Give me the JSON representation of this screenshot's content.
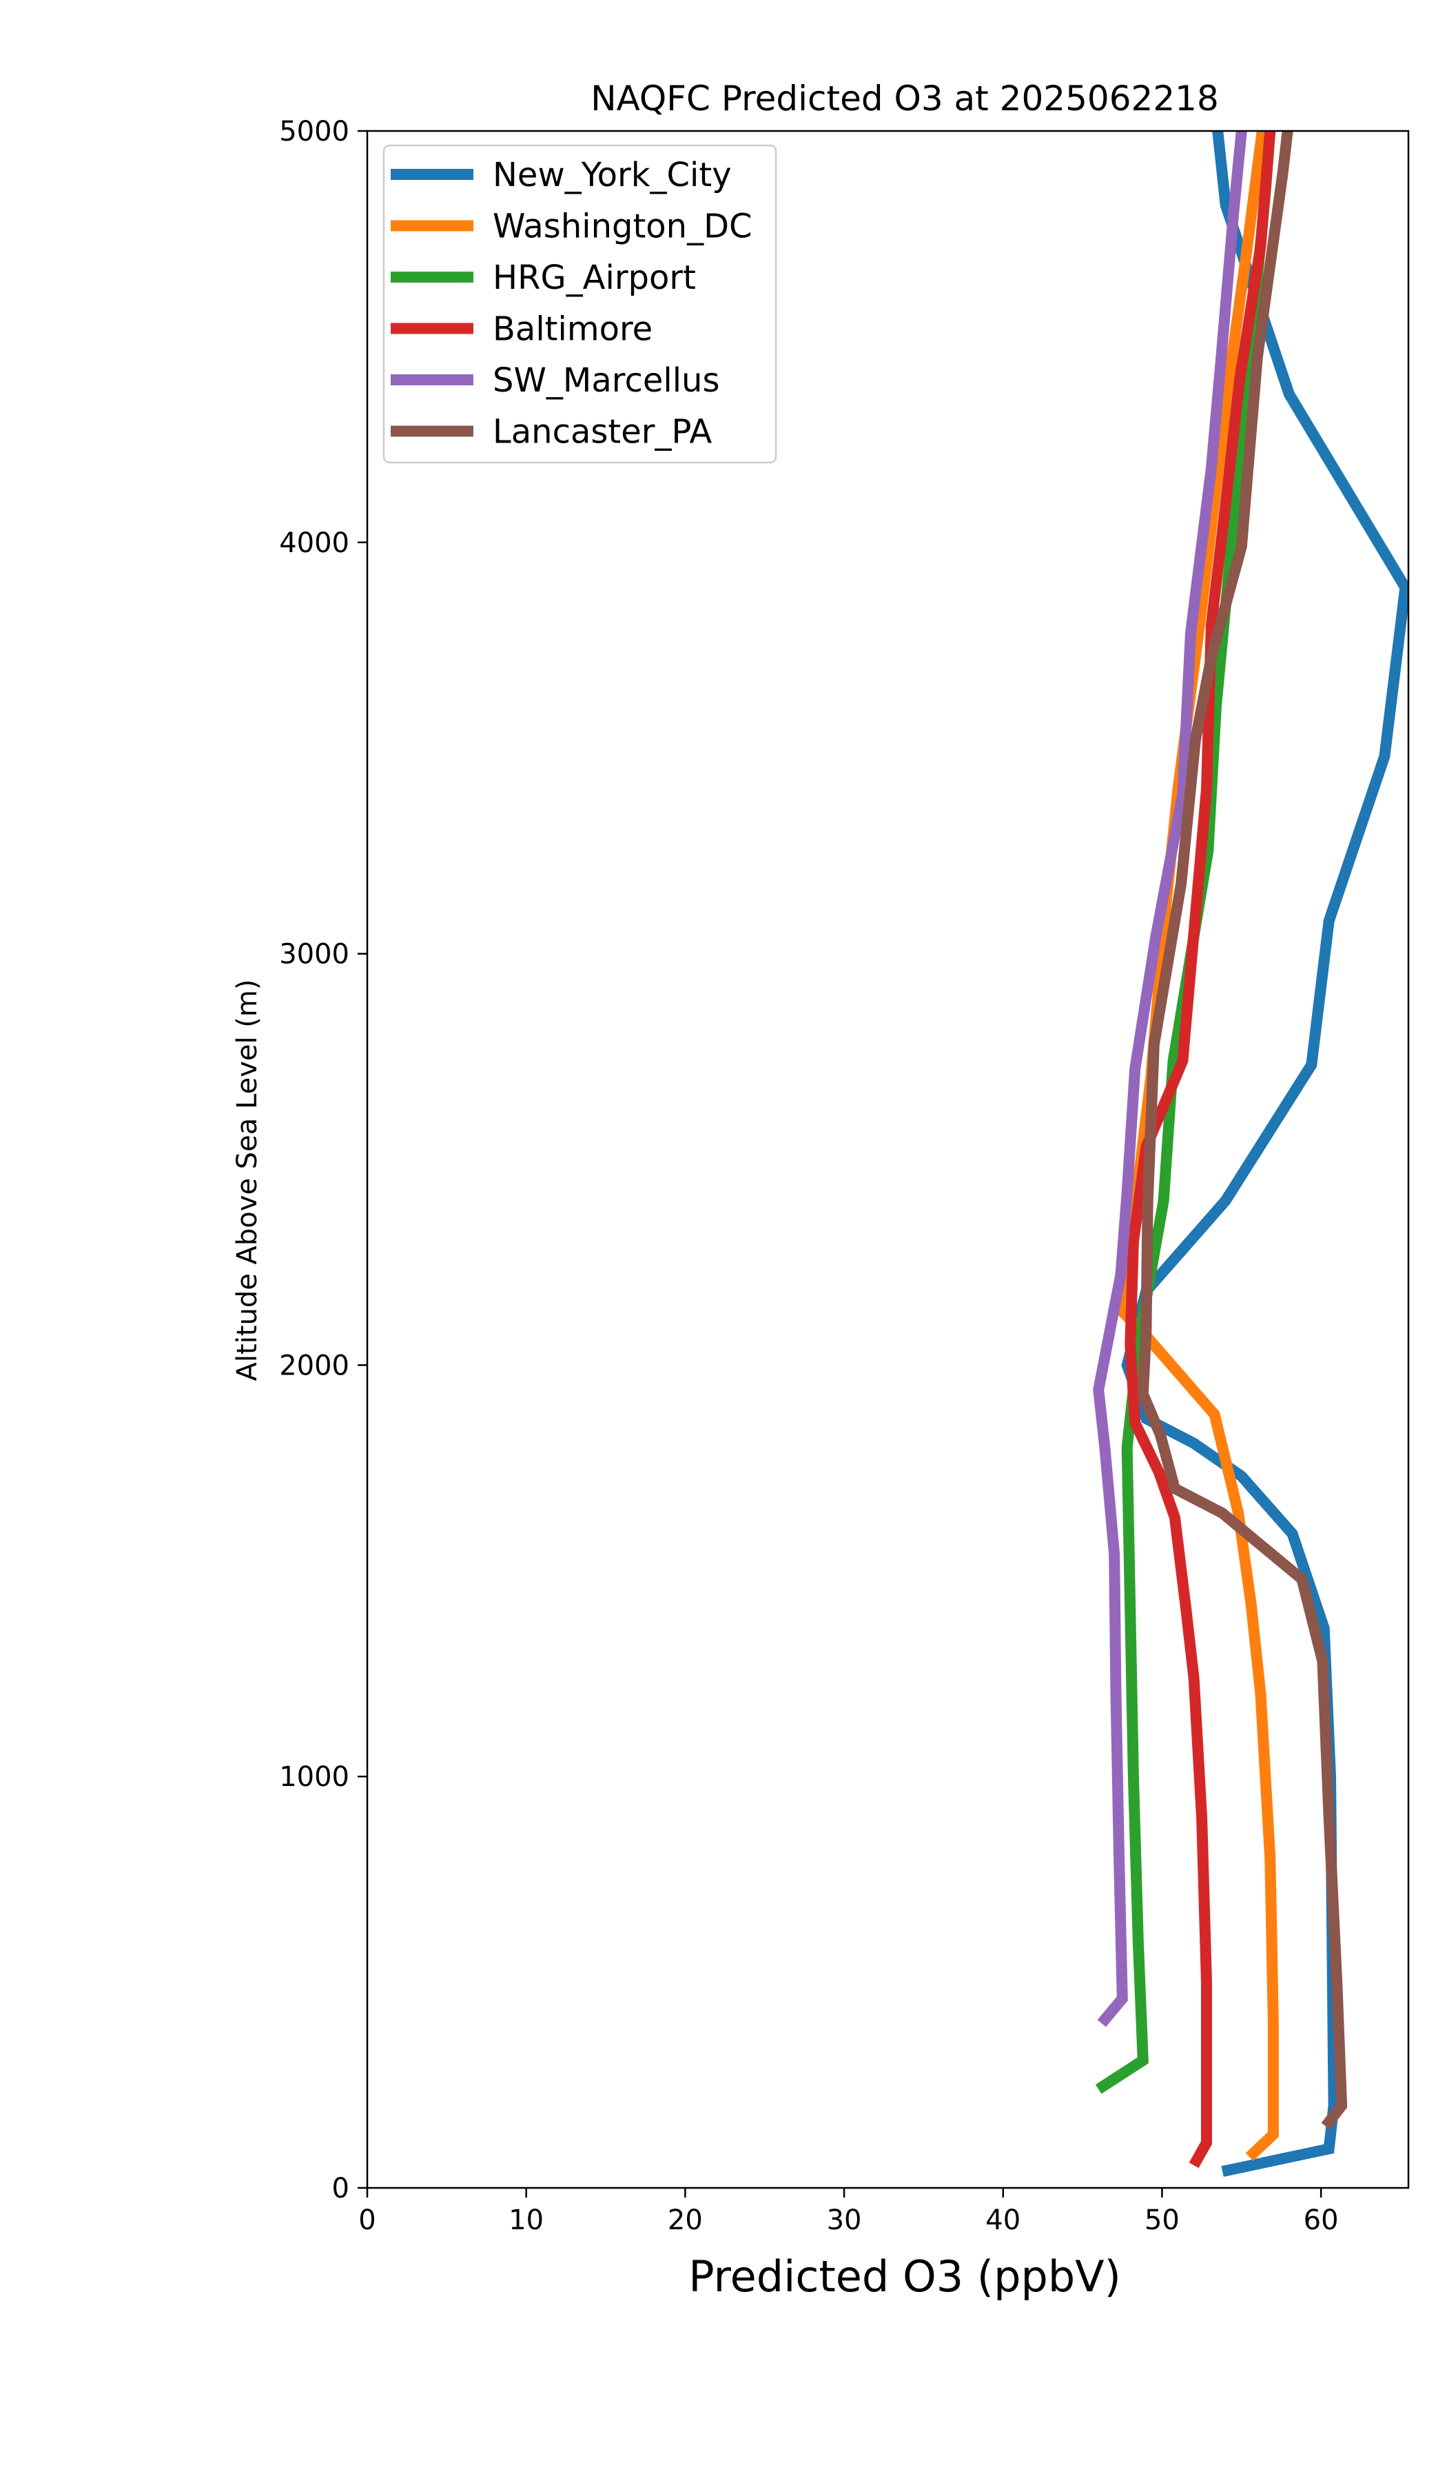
{
  "chart_data": {
    "type": "line",
    "title": "NAQFC Predicted O3 at 2025062218",
    "xlabel": "Predicted O3 (ppbV)",
    "ylabel": "Altitude Above Sea Level (m)",
    "xlim": [
      0,
      65.5
    ],
    "ylim": [
      0,
      5000
    ],
    "xticks": [
      "0",
      "10",
      "20",
      "30",
      "40",
      "50",
      "60"
    ],
    "yticks": [
      "0",
      "1000",
      "2000",
      "3000",
      "4000",
      "5000"
    ],
    "grid": false,
    "legend_position": "top-left",
    "series": [
      {
        "name": "New_York_City",
        "color": "#1f77b4",
        "points": [
          [
            53.8,
            40
          ],
          [
            60.5,
            95
          ],
          [
            60.8,
            200
          ],
          [
            60.7,
            600
          ],
          [
            60.6,
            1000
          ],
          [
            60.2,
            1360
          ],
          [
            58.2,
            1590
          ],
          [
            55.0,
            1730
          ],
          [
            52.0,
            1810
          ],
          [
            49.0,
            1870
          ],
          [
            47.8,
            2000
          ],
          [
            49.0,
            2180
          ],
          [
            54.0,
            2400
          ],
          [
            59.4,
            2730
          ],
          [
            60.5,
            3080
          ],
          [
            64.0,
            3480
          ],
          [
            65.3,
            3890
          ],
          [
            58.0,
            4360
          ],
          [
            54.0,
            4820
          ],
          [
            53.5,
            5000
          ]
        ]
      },
      {
        "name": "Washington_DC",
        "color": "#ff7f0e",
        "points": [
          [
            55.5,
            75
          ],
          [
            57.0,
            130
          ],
          [
            57.0,
            400
          ],
          [
            56.8,
            800
          ],
          [
            56.2,
            1200
          ],
          [
            55.6,
            1420
          ],
          [
            54.8,
            1640
          ],
          [
            53.3,
            1880
          ],
          [
            48.8,
            2080
          ],
          [
            47.5,
            2130
          ],
          [
            48.2,
            2350
          ],
          [
            49.3,
            2700
          ],
          [
            50.2,
            3100
          ],
          [
            51.0,
            3400
          ],
          [
            52.3,
            3780
          ],
          [
            53.3,
            4100
          ],
          [
            54.3,
            4420
          ],
          [
            55.3,
            4700
          ],
          [
            56.3,
            5000
          ]
        ]
      },
      {
        "name": "HRG_Airport",
        "color": "#2ca02c",
        "points": [
          [
            46.0,
            240
          ],
          [
            48.8,
            310
          ],
          [
            48.5,
            600
          ],
          [
            48.2,
            1000
          ],
          [
            48.0,
            1400
          ],
          [
            47.8,
            1800
          ],
          [
            48.5,
            2050
          ],
          [
            50.1,
            2400
          ],
          [
            50.7,
            2740
          ],
          [
            52.9,
            3250
          ],
          [
            53.4,
            3600
          ],
          [
            54.5,
            4050
          ],
          [
            55.4,
            4400
          ],
          [
            56.5,
            4850
          ],
          [
            56.8,
            5000
          ]
        ]
      },
      {
        "name": "Baltimore",
        "color": "#d62728",
        "points": [
          [
            52.0,
            55
          ],
          [
            52.8,
            110
          ],
          [
            52.8,
            500
          ],
          [
            52.5,
            900
          ],
          [
            52.0,
            1240
          ],
          [
            51.5,
            1410
          ],
          [
            50.8,
            1630
          ],
          [
            49.8,
            1740
          ],
          [
            48.3,
            1860
          ],
          [
            48.0,
            2050
          ],
          [
            48.2,
            2300
          ],
          [
            49.0,
            2530
          ],
          [
            51.3,
            2740
          ],
          [
            52.0,
            3050
          ],
          [
            52.8,
            3400
          ],
          [
            53.1,
            3800
          ],
          [
            53.9,
            4060
          ],
          [
            54.9,
            4400
          ],
          [
            56.2,
            4720
          ],
          [
            56.8,
            5000
          ]
        ]
      },
      {
        "name": "SW_Marcellus",
        "color": "#9467bd",
        "points": [
          [
            46.2,
            400
          ],
          [
            47.5,
            460
          ],
          [
            47.3,
            800
          ],
          [
            47.1,
            1200
          ],
          [
            47.0,
            1540
          ],
          [
            46.4,
            1800
          ],
          [
            46.0,
            1940
          ],
          [
            47.4,
            2220
          ],
          [
            47.8,
            2420
          ],
          [
            48.3,
            2720
          ],
          [
            49.6,
            3040
          ],
          [
            51.3,
            3390
          ],
          [
            51.8,
            3780
          ],
          [
            53.1,
            4180
          ],
          [
            53.7,
            4440
          ],
          [
            54.5,
            4800
          ],
          [
            55.0,
            5000
          ]
        ]
      },
      {
        "name": "Lancaster_PA",
        "color": "#8c564b",
        "points": [
          [
            60.3,
            150
          ],
          [
            61.3,
            200
          ],
          [
            61.0,
            500
          ],
          [
            60.5,
            900
          ],
          [
            60.1,
            1280
          ],
          [
            58.8,
            1480
          ],
          [
            53.8,
            1640
          ],
          [
            50.8,
            1700
          ],
          [
            49.9,
            1830
          ],
          [
            48.8,
            1930
          ],
          [
            49.0,
            2080
          ],
          [
            49.1,
            2400
          ],
          [
            49.5,
            2780
          ],
          [
            51.2,
            3170
          ],
          [
            52.1,
            3520
          ],
          [
            53.1,
            3720
          ],
          [
            55.0,
            3990
          ],
          [
            56.0,
            4450
          ],
          [
            57.6,
            4900
          ],
          [
            57.9,
            5000
          ]
        ]
      }
    ]
  }
}
